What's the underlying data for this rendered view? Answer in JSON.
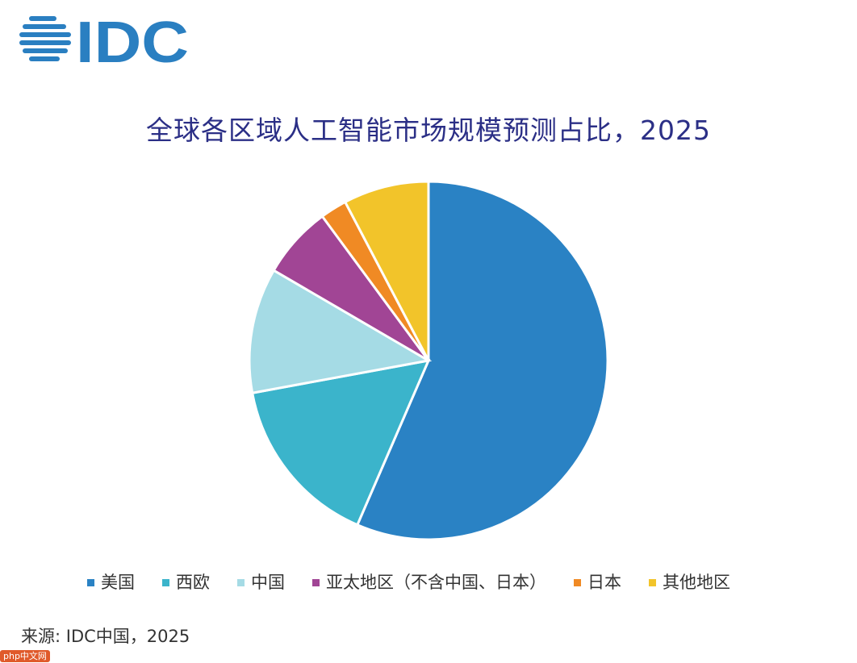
{
  "logo": {
    "text": "IDC",
    "color": "#2a7fc1"
  },
  "watermark": "php中文网",
  "chart_data": {
    "type": "pie",
    "title": "全球各区域人工智能市场规模预测占比，2025",
    "start": "top",
    "direction": "clockwise",
    "categories": [
      "美国",
      "西欧",
      "中国",
      "亚太地区（不含中国、日本）",
      "日本",
      "其他地区"
    ],
    "values": [
      56.5,
      15.6,
      11.3,
      6.5,
      2.4,
      7.7
    ],
    "unit": "%",
    "colors": [
      "#2a82c4",
      "#3bb4cb",
      "#a5dbe5",
      "#a14595",
      "#f08a24",
      "#f2c42a"
    ],
    "legend_position": "bottom",
    "source": "来源: IDC中国，2025"
  }
}
